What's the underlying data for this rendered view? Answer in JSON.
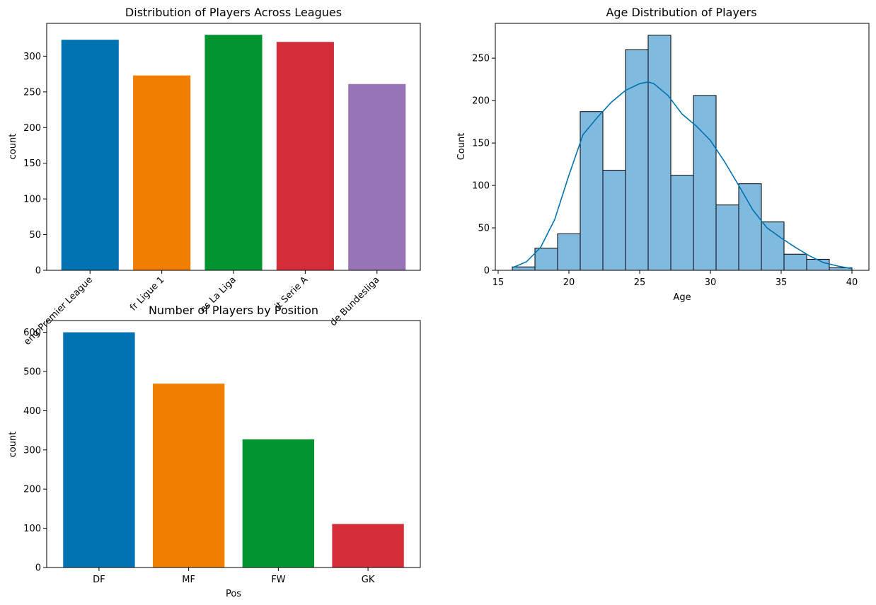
{
  "chart_data": [
    {
      "type": "bar",
      "title": "Distribution of Players Across Leagues",
      "xlabel": "",
      "ylabel": "count",
      "categories": [
        "eng Premier League",
        "fr Ligue 1",
        "es La Liga",
        "it Serie A",
        "de Bundesliga"
      ],
      "values": [
        323,
        273,
        330,
        320,
        261
      ],
      "colors": [
        "#0173b2",
        "#f07e00",
        "#029431",
        "#d32d38",
        "#9873b6"
      ],
      "ylim": [
        0,
        346
      ],
      "yticks": [
        0,
        50,
        100,
        150,
        200,
        250,
        300
      ],
      "xtick_rotation": 45
    },
    {
      "type": "histogram",
      "title": "Age Distribution of Players",
      "xlabel": "Age",
      "ylabel": "Count",
      "bin_edges": [
        16,
        17.6,
        19.2,
        20.8,
        22.4,
        24.0,
        25.6,
        27.2,
        28.8,
        30.4,
        32.0,
        33.6,
        35.2,
        36.8,
        38.4,
        40.0
      ],
      "counts": [
        4,
        26,
        43,
        187,
        118,
        260,
        277,
        112,
        206,
        77,
        102,
        57,
        19,
        13,
        3
      ],
      "bar_color": "#81badf",
      "edge_color": "#000000",
      "kde": {
        "color": "#0173b2",
        "x": [
          16,
          17,
          18,
          19,
          20,
          21,
          22,
          23,
          24,
          25,
          25.6,
          26,
          27,
          28,
          29,
          30,
          31,
          32,
          33,
          34,
          35,
          36,
          37,
          38,
          39,
          40
        ],
        "y": [
          3,
          10,
          27,
          60,
          112,
          160,
          180,
          198,
          212,
          220,
          222,
          220,
          206,
          184,
          170,
          153,
          128,
          100,
          71,
          50,
          38,
          27,
          17,
          9,
          5,
          2
        ]
      },
      "xlim": [
        14.8,
        41.2
      ],
      "ylim": [
        0,
        291
      ],
      "xticks": [
        15,
        20,
        25,
        30,
        35,
        40
      ],
      "yticks": [
        0,
        50,
        100,
        150,
        200,
        250
      ]
    },
    {
      "type": "bar",
      "title": "Number of Players by Position",
      "xlabel": "Pos",
      "ylabel": "count",
      "categories": [
        "DF",
        "MF",
        "FW",
        "GK"
      ],
      "values": [
        600,
        469,
        327,
        111
      ],
      "colors": [
        "#0173b2",
        "#f07e00",
        "#029431",
        "#d32d38"
      ],
      "ylim": [
        0,
        630
      ],
      "yticks": [
        0,
        100,
        200,
        300,
        400,
        500,
        600
      ],
      "xtick_rotation": 0
    }
  ]
}
